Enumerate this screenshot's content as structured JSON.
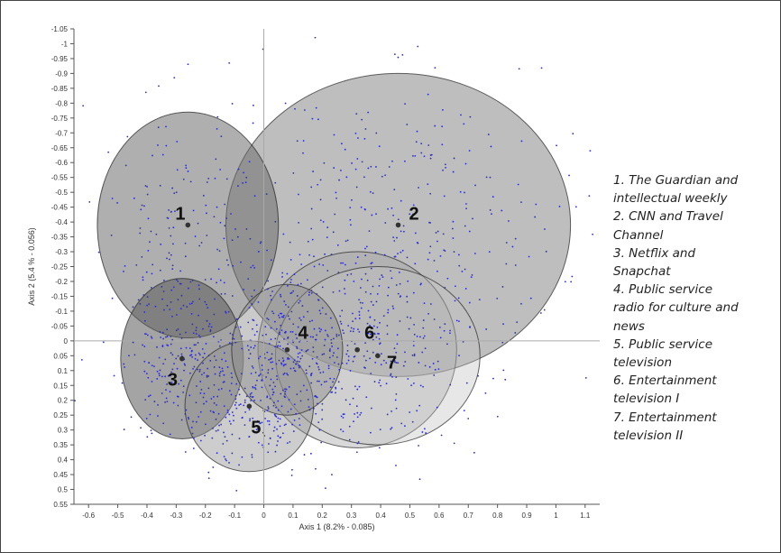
{
  "chart_data": {
    "type": "scatter",
    "xlabel": "Axis 1 (8.2% - 0.085)",
    "ylabel": "Axis 2 (5.4 % - 0.056)",
    "xlim": [
      -0.65,
      1.15
    ],
    "ylim": [
      -1.05,
      0.55
    ],
    "y_axis_inverted": true,
    "x_ticks": [
      "-0.6",
      "-0.5",
      "-0.4",
      "-0.3",
      "-0.2",
      "-0.1",
      "0",
      "0.1",
      "0.2",
      "0.3",
      "0.4",
      "0.5",
      "0.6",
      "0.7",
      "0.8",
      "0.9",
      "1",
      "1.1"
    ],
    "y_ticks": [
      "-1.05",
      "-1",
      "-0.95",
      "-0.9",
      "-0.85",
      "-0.8",
      "-0.75",
      "-0.7",
      "-0.65",
      "-0.6",
      "-0.55",
      "-0.5",
      "-0.45",
      "-0.4",
      "-0.35",
      "-0.3",
      "-0.25",
      "-0.2",
      "-0.15",
      "-0.1",
      "-0.05",
      "0",
      "0.05",
      "0.1",
      "0.15",
      "0.2",
      "0.25",
      "0.3",
      "0.35",
      "0.4",
      "0.45",
      "0.5",
      "0.55"
    ],
    "grid": false,
    "point_color": "#2b2bd4",
    "individuals_count_estimate": 1400,
    "clusters": [
      {
        "label": "1",
        "center": [
          -0.26,
          -0.39
        ],
        "radius": [
          0.31,
          0.38
        ],
        "fill": "#6e6e6e",
        "opacity": 0.55
      },
      {
        "label": "2",
        "center": [
          0.46,
          -0.39
        ],
        "radius": [
          0.59,
          0.51
        ],
        "fill": "#7d7d7d",
        "opacity": 0.5
      },
      {
        "label": "3",
        "center": [
          -0.28,
          0.06
        ],
        "radius": [
          0.21,
          0.27
        ],
        "fill": "#5a5a5a",
        "opacity": 0.55
      },
      {
        "label": "4",
        "center": [
          0.08,
          0.03
        ],
        "radius": [
          0.19,
          0.22
        ],
        "fill": "#8a8a8a",
        "opacity": 0.45
      },
      {
        "label": "5",
        "center": [
          -0.05,
          0.22
        ],
        "radius": [
          0.22,
          0.22
        ],
        "fill": "#909090",
        "opacity": 0.45
      },
      {
        "label": "6",
        "center": [
          0.32,
          0.03
        ],
        "radius": [
          0.34,
          0.33
        ],
        "fill": "#a0a0a0",
        "opacity": 0.4
      },
      {
        "label": "7",
        "center": [
          0.39,
          0.05
        ],
        "radius": [
          0.35,
          0.3
        ],
        "fill": "#c2c2c2",
        "opacity": 0.4
      }
    ]
  },
  "legend": [
    "1. The Guardian and",
    "intellectual weekly",
    "2. CNN and Travel",
    "Channel",
    "3. Netflix and",
    "Snapchat",
    "4. Public service",
    "radio for culture and",
    "news",
    "5. Public service",
    "television",
    "6. Entertainment",
    "television I",
    "7. Entertainment",
    "television II"
  ]
}
